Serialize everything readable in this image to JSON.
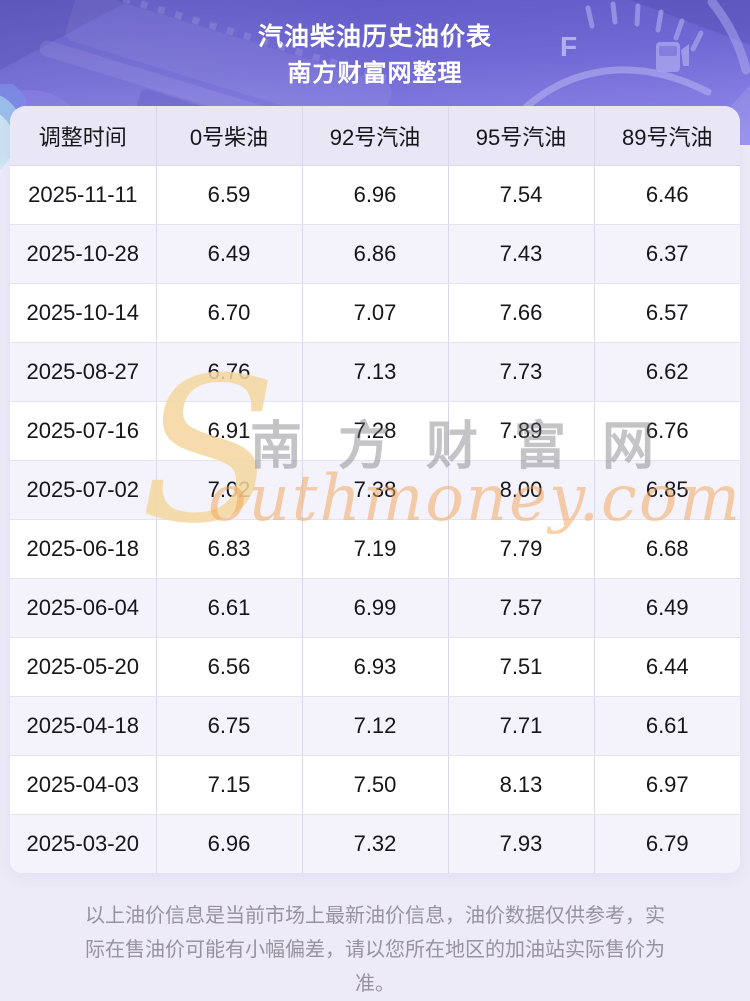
{
  "header": {
    "title": "汽油柴油历史油价表",
    "subtitle": "南方财富网整理"
  },
  "chart_data": {
    "type": "table",
    "title": "汽油柴油历史油价表",
    "subtitle": "南方财富网整理",
    "columns": [
      "调整时间",
      "0号柴油",
      "92号汽油",
      "95号汽油",
      "89号汽油"
    ],
    "rows": [
      [
        "2025-11-11",
        "6.59",
        "6.96",
        "7.54",
        "6.46"
      ],
      [
        "2025-10-28",
        "6.49",
        "6.86",
        "7.43",
        "6.37"
      ],
      [
        "2025-10-14",
        "6.70",
        "7.07",
        "7.66",
        "6.57"
      ],
      [
        "2025-08-27",
        "6.76",
        "7.13",
        "7.73",
        "6.62"
      ],
      [
        "2025-07-16",
        "6.91",
        "7.28",
        "7.89",
        "6.76"
      ],
      [
        "2025-07-02",
        "7.02",
        "7.38",
        "8.00",
        "6.85"
      ],
      [
        "2025-06-18",
        "6.83",
        "7.19",
        "7.79",
        "6.68"
      ],
      [
        "2025-06-04",
        "6.61",
        "6.99",
        "7.57",
        "6.49"
      ],
      [
        "2025-05-20",
        "6.56",
        "6.93",
        "7.51",
        "6.44"
      ],
      [
        "2025-04-18",
        "6.75",
        "7.12",
        "7.71",
        "6.61"
      ],
      [
        "2025-04-03",
        "7.15",
        "7.50",
        "8.13",
        "6.97"
      ],
      [
        "2025-03-20",
        "6.96",
        "7.32",
        "7.93",
        "6.79"
      ]
    ]
  },
  "watermark": {
    "initial": "S",
    "chinese": "南方财富网",
    "latin": "outhmoney.com"
  },
  "footer": {
    "disclaimer": "以上油价信息是当前市场上最新油价信息，油价数据仅供参考，实际在售油价可能有小幅偏差，请以您所在地区的加油站实际售价为准。"
  },
  "colors": {
    "hero_gradient_top": "#5e57c2",
    "hero_gradient_bottom": "#948ceb",
    "header_row_bg": "#e9e6f5",
    "row_bg": "#ffffff",
    "row_alt_bg": "#f4f2fb",
    "page_bg": "#edebf7",
    "cell_border": "#dcd8ec",
    "cell_text": "#16151a",
    "title_text": "#ffffff",
    "disclaimer_text": "#96939e",
    "watermark_gold": "#f5d79f",
    "watermark_orange": "#f2a458",
    "watermark_gray": "#6e6e74"
  }
}
